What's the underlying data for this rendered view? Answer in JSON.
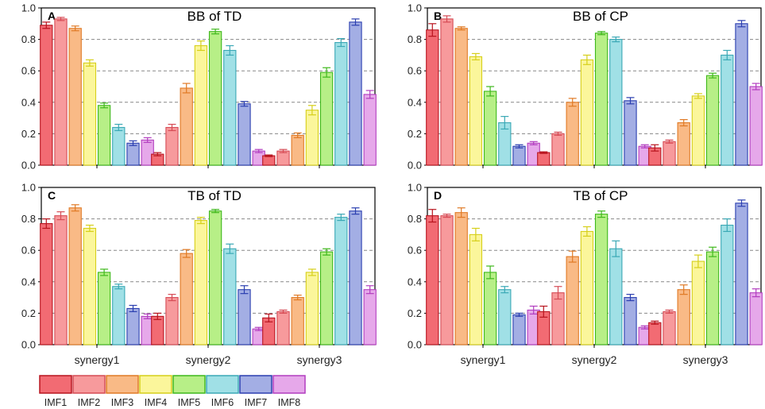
{
  "categories": [
    "synergy1",
    "synergy2",
    "synergy3"
  ],
  "series_names": [
    "IMF1",
    "IMF2",
    "IMF3",
    "IMF4",
    "IMF5",
    "IMF6",
    "IMF7",
    "IMF8"
  ],
  "colors": {
    "fills": [
      "#f26b73",
      "#f79a9c",
      "#f9ba86",
      "#fbf69b",
      "#b7ef87",
      "#a0e0e6",
      "#a3aee4",
      "#e6a8ea"
    ],
    "strokes": [
      "#b8141e",
      "#d64b55",
      "#e07a25",
      "#d6cf1a",
      "#3fb81c",
      "#3aa8b5",
      "#2b3fb0",
      "#b23dbf"
    ],
    "grid": "#888888"
  },
  "chart_data": [
    {
      "type": "bar",
      "panel": "A",
      "title": "BB of TD",
      "categories": [
        "synergy1",
        "synergy2",
        "synergy3"
      ],
      "ylim": [
        0,
        1.0
      ],
      "yticks": [
        "0.0",
        "0.2",
        "0.4",
        "0.6",
        "0.8",
        "1.0"
      ],
      "show_category_labels": false,
      "series": [
        {
          "name": "IMF1",
          "values": [
            0.89,
            0.07,
            0.06
          ],
          "errors": [
            0.02,
            0.01,
            0.005
          ]
        },
        {
          "name": "IMF2",
          "values": [
            0.93,
            0.24,
            0.09
          ],
          "errors": [
            0.01,
            0.02,
            0.01
          ]
        },
        {
          "name": "IMF3",
          "values": [
            0.87,
            0.49,
            0.19
          ],
          "errors": [
            0.015,
            0.03,
            0.015
          ]
        },
        {
          "name": "IMF4",
          "values": [
            0.65,
            0.76,
            0.35
          ],
          "errors": [
            0.02,
            0.03,
            0.03
          ]
        },
        {
          "name": "IMF5",
          "values": [
            0.38,
            0.85,
            0.59
          ],
          "errors": [
            0.015,
            0.015,
            0.03
          ]
        },
        {
          "name": "IMF6",
          "values": [
            0.24,
            0.73,
            0.78
          ],
          "errors": [
            0.02,
            0.03,
            0.025
          ]
        },
        {
          "name": "IMF7",
          "values": [
            0.14,
            0.39,
            0.91
          ],
          "errors": [
            0.015,
            0.015,
            0.02
          ]
        },
        {
          "name": "IMF8",
          "values": [
            0.16,
            0.09,
            0.45
          ],
          "errors": [
            0.015,
            0.01,
            0.025
          ]
        }
      ]
    },
    {
      "type": "bar",
      "panel": "B",
      "title": "BB of CP",
      "categories": [
        "synergy1",
        "synergy2",
        "synergy3"
      ],
      "ylim": [
        0,
        1.0
      ],
      "yticks": [
        "0.0",
        "0.2",
        "0.4",
        "0.6",
        "0.8",
        "1.0"
      ],
      "show_category_labels": false,
      "series": [
        {
          "name": "IMF1",
          "values": [
            0.86,
            0.08,
            0.11
          ],
          "errors": [
            0.04,
            0.005,
            0.02
          ]
        },
        {
          "name": "IMF2",
          "values": [
            0.93,
            0.2,
            0.15
          ],
          "errors": [
            0.02,
            0.01,
            0.01
          ]
        },
        {
          "name": "IMF3",
          "values": [
            0.87,
            0.4,
            0.27
          ],
          "errors": [
            0.01,
            0.025,
            0.02
          ]
        },
        {
          "name": "IMF4",
          "values": [
            0.69,
            0.67,
            0.44
          ],
          "errors": [
            0.02,
            0.03,
            0.015
          ]
        },
        {
          "name": "IMF5",
          "values": [
            0.47,
            0.84,
            0.57
          ],
          "errors": [
            0.03,
            0.01,
            0.015
          ]
        },
        {
          "name": "IMF6",
          "values": [
            0.27,
            0.8,
            0.7
          ],
          "errors": [
            0.04,
            0.015,
            0.03
          ]
        },
        {
          "name": "IMF7",
          "values": [
            0.12,
            0.41,
            0.9
          ],
          "errors": [
            0.01,
            0.02,
            0.02
          ]
        },
        {
          "name": "IMF8",
          "values": [
            0.14,
            0.12,
            0.5
          ],
          "errors": [
            0.01,
            0.01,
            0.02
          ]
        }
      ]
    },
    {
      "type": "bar",
      "panel": "C",
      "title": "TB of TD",
      "categories": [
        "synergy1",
        "synergy2",
        "synergy3"
      ],
      "ylim": [
        0,
        1.0
      ],
      "yticks": [
        "0.0",
        "0.2",
        "0.4",
        "0.6",
        "0.8",
        "1.0"
      ],
      "show_category_labels": true,
      "series": [
        {
          "name": "IMF1",
          "values": [
            0.77,
            0.18,
            0.17
          ],
          "errors": [
            0.03,
            0.02,
            0.025
          ]
        },
        {
          "name": "IMF2",
          "values": [
            0.82,
            0.3,
            0.21
          ],
          "errors": [
            0.025,
            0.02,
            0.01
          ]
        },
        {
          "name": "IMF3",
          "values": [
            0.87,
            0.58,
            0.3
          ],
          "errors": [
            0.02,
            0.025,
            0.015
          ]
        },
        {
          "name": "IMF4",
          "values": [
            0.74,
            0.79,
            0.46
          ],
          "errors": [
            0.02,
            0.02,
            0.02
          ]
        },
        {
          "name": "IMF5",
          "values": [
            0.46,
            0.85,
            0.59
          ],
          "errors": [
            0.02,
            0.01,
            0.02
          ]
        },
        {
          "name": "IMF6",
          "values": [
            0.37,
            0.61,
            0.81
          ],
          "errors": [
            0.015,
            0.03,
            0.02
          ]
        },
        {
          "name": "IMF7",
          "values": [
            0.23,
            0.35,
            0.85
          ],
          "errors": [
            0.02,
            0.025,
            0.02
          ]
        },
        {
          "name": "IMF8",
          "values": [
            0.18,
            0.1,
            0.35
          ],
          "errors": [
            0.015,
            0.01,
            0.025
          ]
        }
      ]
    },
    {
      "type": "bar",
      "panel": "D",
      "title": "TB of CP",
      "categories": [
        "synergy1",
        "synergy2",
        "synergy3"
      ],
      "ylim": [
        0,
        1.0
      ],
      "yticks": [
        "0.0",
        "0.2",
        "0.4",
        "0.6",
        "0.8",
        "1.0"
      ],
      "show_category_labels": true,
      "series": [
        {
          "name": "IMF1",
          "values": [
            0.82,
            0.21,
            0.14
          ],
          "errors": [
            0.04,
            0.035,
            0.01
          ]
        },
        {
          "name": "IMF2",
          "values": [
            0.82,
            0.33,
            0.21
          ],
          "errors": [
            0.01,
            0.04,
            0.01
          ]
        },
        {
          "name": "IMF3",
          "values": [
            0.84,
            0.56,
            0.35
          ],
          "errors": [
            0.03,
            0.035,
            0.03
          ]
        },
        {
          "name": "IMF4",
          "values": [
            0.7,
            0.72,
            0.53
          ],
          "errors": [
            0.04,
            0.03,
            0.04
          ]
        },
        {
          "name": "IMF5",
          "values": [
            0.46,
            0.83,
            0.59
          ],
          "errors": [
            0.04,
            0.02,
            0.03
          ]
        },
        {
          "name": "IMF6",
          "values": [
            0.35,
            0.61,
            0.76
          ],
          "errors": [
            0.02,
            0.05,
            0.04
          ]
        },
        {
          "name": "IMF7",
          "values": [
            0.19,
            0.3,
            0.9
          ],
          "errors": [
            0.01,
            0.02,
            0.02
          ]
        },
        {
          "name": "IMF8",
          "values": [
            0.22,
            0.11,
            0.33
          ],
          "errors": [
            0.025,
            0.01,
            0.025
          ]
        }
      ]
    }
  ]
}
